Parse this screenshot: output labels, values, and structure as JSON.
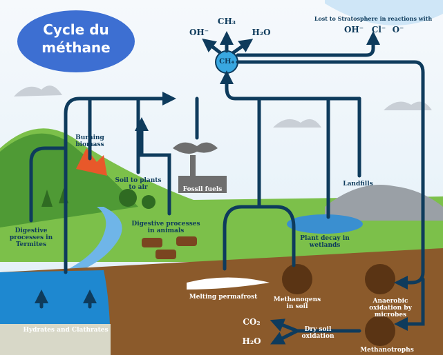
{
  "title": "Cycle du méthane",
  "center": "CH₄",
  "products": [
    "OH⁻",
    "CH₃",
    "H₂O"
  ],
  "stratosphere": {
    "caption": "Lost to Stratosphere in reactions with",
    "ions": [
      "OH⁻",
      "Cl⁻",
      "O⁻"
    ]
  },
  "labels": [
    "Burning biomass",
    "Soil to plants to air",
    "Fossil fuels",
    "Landfills",
    "Digestive processes in Termites",
    "Digestive processes in animals",
    "Plant decay in wetlands",
    "Melting permafrost",
    "Methanogens in soil",
    "Anaerobic oxidation by microbes",
    "Dry soil oxidation",
    "Methanotrophs",
    "Hydrates and Clathrates"
  ],
  "soil_products": [
    "CO₂",
    "H₂O"
  ]
}
